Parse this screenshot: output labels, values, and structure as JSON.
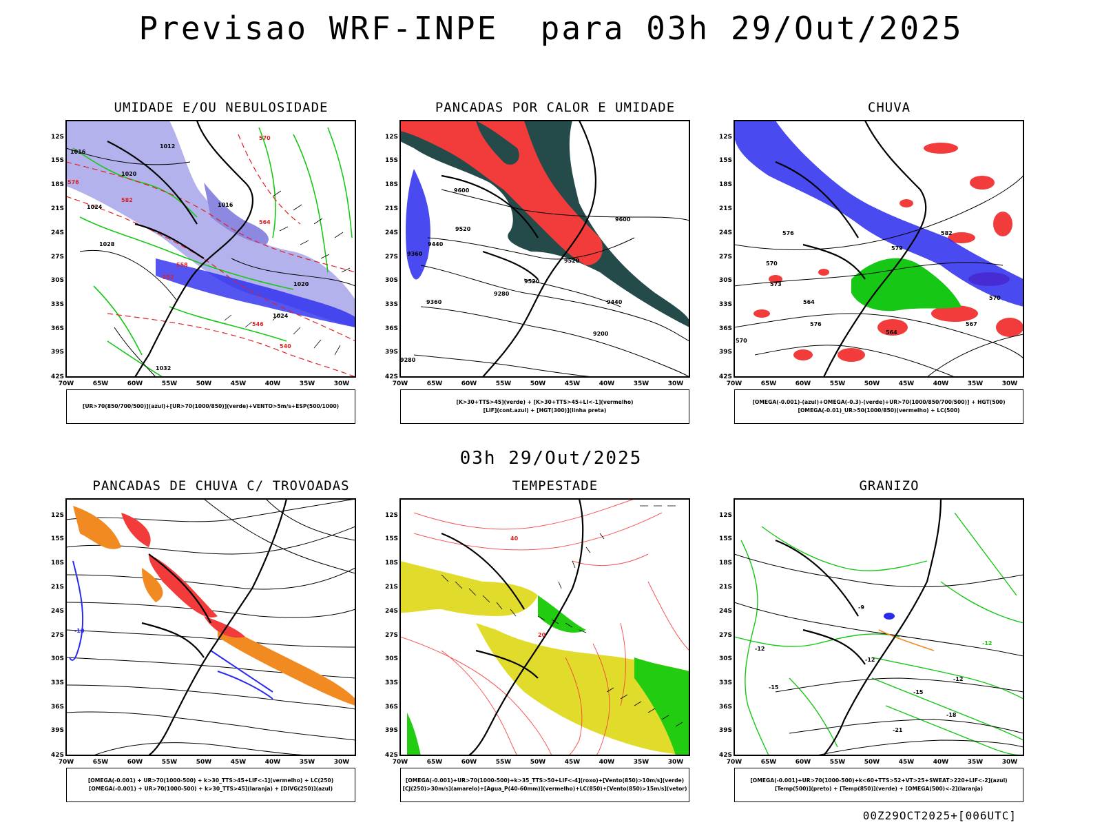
{
  "main_title": "Previsao WRF-INPE  para 03h 29/Out/2025",
  "subtitle": "03h 29/Out/2025",
  "footer": "00Z29OCT2025+[006UTC]",
  "axes": {
    "lat_labels": [
      "12S",
      "15S",
      "18S",
      "21S",
      "24S",
      "27S",
      "30S",
      "33S",
      "36S",
      "39S",
      "42S"
    ],
    "lon_labels": [
      "70W",
      "65W",
      "60W",
      "55W",
      "50W",
      "45W",
      "40W",
      "35W",
      "30W"
    ]
  },
  "panels": [
    {
      "title": "UMIDADE E/OU NEBULOSIDADE",
      "legend": [
        "[UR>70(850/700/500)](azul)+[UR>70(1000/850)](verde)+VENTO>5m/s+ESP(500/1000)"
      ],
      "contour_labels": [
        "1016",
        "1012",
        "1020",
        "1024",
        "1028",
        "1032",
        "1016",
        "1020",
        "1024",
        "570",
        "576",
        "582",
        "564",
        "558",
        "552",
        "546",
        "540"
      ]
    },
    {
      "title": "PANCADAS POR CALOR E UMIDADE",
      "legend": [
        "[K>30+TTS>45](verde) + [K>30+TTS>45+LI<-1](vermelho)",
        "[LIF](cont.azul) + [HGT(300)](linha preta)"
      ],
      "contour_labels": [
        "9600",
        "9520",
        "9440",
        "9360",
        "9280",
        "9200",
        "9280",
        "9360",
        "9440",
        "9520",
        "9600",
        "9520"
      ]
    },
    {
      "title": "CHUVA",
      "legend": [
        "[OMEGA(-0.001)-(azul)+OMEGA(-0.3)-(verde)+UR>70(1000/850/700/500)] + HGT(500)",
        "[OMEGA(-0.01)_UR>50(1000/850)(vermelho) + LC(500)"
      ],
      "contour_labels": [
        "576",
        "570",
        "564",
        "573",
        "579",
        "582",
        "570",
        "567",
        "564",
        "570",
        "576"
      ]
    },
    {
      "title": "PANCADAS DE CHUVA C/ TROVOADAS",
      "legend": [
        "[OMEGA(-0.001) + UR>70(1000-500) + k>30_TTS>45+LIF<-1](vermelho) + LC(250)",
        "[OMEGA(-0.001) + UR>70(1000-500) + k>30_TTS>45](laranja) + [DIVG(250)](azul)"
      ],
      "contour_labels": [
        "-10"
      ]
    },
    {
      "title": "TEMPESTADE",
      "legend": [
        "[OMEGA(-0.001)+UR>70(1000-500)+k>35_TTS>50+LIF<-4](roxo)+[Vento(850)>10m/s](verde)",
        "[CJ(250)>30m/s](amarelo)+[Agua_P(40-60mm)](vermelho)+LC(850)+[Vento(850)>15m/s](vetor)"
      ],
      "contour_labels": [
        "40",
        "20"
      ]
    },
    {
      "title": "GRANIZO",
      "legend": [
        "[OMEGA(-0.001)+UR>70(1000-500)+k<60+TTS>52+VT>25+SWEAT>220+LIF<-2](azul)",
        "[Temp(500)](preto) + [Temp(850)](verde) + [OMEGA(500)<-2](laranja)"
      ],
      "contour_labels": [
        "-9",
        "-12",
        "-12",
        "-15",
        "-12",
        "-15",
        "-18",
        "-21",
        "-12"
      ]
    }
  ],
  "colors": {
    "blue_light": "#b4b2ec",
    "blue_mid": "#8d88e0",
    "blue": "#2a2aef",
    "green": "#16c716",
    "green_bright": "#22cc11",
    "red": "#f23b3b",
    "red_line": "#e02020",
    "dark_teal": "#244a4a",
    "yellow": "#e1dc2c",
    "orange": "#f28a22"
  }
}
